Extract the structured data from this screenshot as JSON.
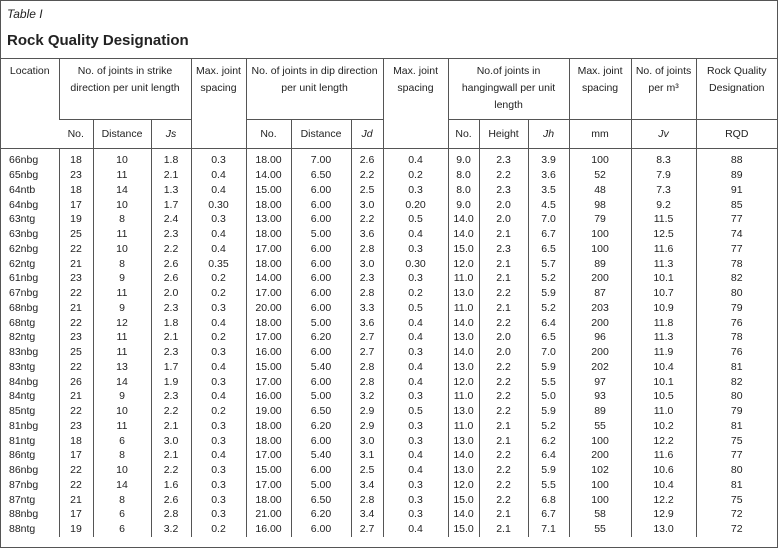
{
  "caption": {
    "label": "Table I",
    "title": "Rock Quality Designation"
  },
  "table": {
    "header": [
      {
        "label": "Location"
      },
      {
        "label": "No. of joints in strike direction per unit length",
        "sub": [
          "No.",
          "Distance",
          "Js"
        ],
        "italic_last": true
      },
      {
        "label": "Max. joint spacing"
      },
      {
        "label": "No. of joints in dip direction per unit length",
        "sub": [
          "No.",
          "Distance",
          "Jd"
        ],
        "italic_last": true
      },
      {
        "label": "Max. joint spacing"
      },
      {
        "label": "No.of joints in hangingwall per unit length",
        "sub": [
          "No.",
          "Height",
          "Jh"
        ],
        "italic_last": true
      },
      {
        "label": "Max. joint spacing",
        "sub": [
          "mm"
        ]
      },
      {
        "label": "No. of joints per m³",
        "sub": [
          "Jv"
        ],
        "italic_last": true
      },
      {
        "label": "Rock Quality Designation",
        "sub": [
          "RQD"
        ]
      }
    ],
    "rows": [
      [
        "66nbg",
        "18",
        "10",
        "1.8",
        "0.3",
        "18.00",
        "7.00",
        "2.6",
        "0.4",
        "9.0",
        "2.3",
        "3.9",
        "100",
        "8.3",
        "88"
      ],
      [
        "65nbg",
        "23",
        "11",
        "2.1",
        "0.4",
        "14.00",
        "6.50",
        "2.2",
        "0.2",
        "8.0",
        "2.2",
        "3.6",
        "52",
        "7.9",
        "89"
      ],
      [
        "64ntb",
        "18",
        "14",
        "1.3",
        "0.4",
        "15.00",
        "6.00",
        "2.5",
        "0.3",
        "8.0",
        "2.3",
        "3.5",
        "48",
        "7.3",
        "91"
      ],
      [
        "64nbg",
        "17",
        "10",
        "1.7",
        "0.30",
        "18.00",
        "6.00",
        "3.0",
        "0.20",
        "9.0",
        "2.0",
        "4.5",
        "98",
        "9.2",
        "85"
      ],
      [
        "63ntg",
        "19",
        "8",
        "2.4",
        "0.3",
        "13.00",
        "6.00",
        "2.2",
        "0.5",
        "14.0",
        "2.0",
        "7.0",
        "79",
        "11.5",
        "77"
      ],
      [
        "63nbg",
        "25",
        "11",
        "2.3",
        "0.4",
        "18.00",
        "5.00",
        "3.6",
        "0.4",
        "14.0",
        "2.1",
        "6.7",
        "100",
        "12.5",
        "74"
      ],
      [
        "62nbg",
        "22",
        "10",
        "2.2",
        "0.4",
        "17.00",
        "6.00",
        "2.8",
        "0.3",
        "15.0",
        "2.3",
        "6.5",
        "100",
        "11.6",
        "77"
      ],
      [
        "62ntg",
        "21",
        "8",
        "2.6",
        "0.35",
        "18.00",
        "6.00",
        "3.0",
        "0.30",
        "12.0",
        "2.1",
        "5.7",
        "89",
        "11.3",
        "78"
      ],
      [
        "61nbg",
        "23",
        "9",
        "2.6",
        "0.2",
        "14.00",
        "6.00",
        "2.3",
        "0.3",
        "11.0",
        "2.1",
        "5.2",
        "200",
        "10.1",
        "82"
      ],
      [
        "67nbg",
        "22",
        "11",
        "2.0",
        "0.2",
        "17.00",
        "6.00",
        "2.8",
        "0.2",
        "13.0",
        "2.2",
        "5.9",
        "87",
        "10.7",
        "80"
      ],
      [
        "68nbg",
        "21",
        "9",
        "2.3",
        "0.3",
        "20.00",
        "6.00",
        "3.3",
        "0.5",
        "11.0",
        "2.1",
        "5.2",
        "203",
        "10.9",
        "79"
      ],
      [
        "68ntg",
        "22",
        "12",
        "1.8",
        "0.4",
        "18.00",
        "5.00",
        "3.6",
        "0.4",
        "14.0",
        "2.2",
        "6.4",
        "200",
        "11.8",
        "76"
      ],
      [
        "82ntg",
        "23",
        "11",
        "2.1",
        "0.2",
        "17.00",
        "6.20",
        "2.7",
        "0.4",
        "13.0",
        "2.0",
        "6.5",
        "96",
        "11.3",
        "78"
      ],
      [
        "83nbg",
        "25",
        "11",
        "2.3",
        "0.3",
        "16.00",
        "6.00",
        "2.7",
        "0.3",
        "14.0",
        "2.0",
        "7.0",
        "200",
        "11.9",
        "76"
      ],
      [
        "83ntg",
        "22",
        "13",
        "1.7",
        "0.4",
        "15.00",
        "5.40",
        "2.8",
        "0.4",
        "13.0",
        "2.2",
        "5.9",
        "202",
        "10.4",
        "81"
      ],
      [
        "84nbg",
        "26",
        "14",
        "1.9",
        "0.3",
        "17.00",
        "6.00",
        "2.8",
        "0.4",
        "12.0",
        "2.2",
        "5.5",
        "97",
        "10.1",
        "82"
      ],
      [
        "84ntg",
        "21",
        "9",
        "2.3",
        "0.4",
        "16.00",
        "5.00",
        "3.2",
        "0.3",
        "11.0",
        "2.2",
        "5.0",
        "93",
        "10.5",
        "80"
      ],
      [
        "85ntg",
        "22",
        "10",
        "2.2",
        "0.2",
        "19.00",
        "6.50",
        "2.9",
        "0.5",
        "13.0",
        "2.2",
        "5.9",
        "89",
        "11.0",
        "79"
      ],
      [
        "81nbg",
        "23",
        "11",
        "2.1",
        "0.3",
        "18.00",
        "6.20",
        "2.9",
        "0.3",
        "11.0",
        "2.1",
        "5.2",
        "55",
        "10.2",
        "81"
      ],
      [
        "81ntg",
        "18",
        "6",
        "3.0",
        "0.3",
        "18.00",
        "6.00",
        "3.0",
        "0.3",
        "13.0",
        "2.1",
        "6.2",
        "100",
        "12.2",
        "75"
      ],
      [
        "86ntg",
        "17",
        "8",
        "2.1",
        "0.4",
        "17.00",
        "5.40",
        "3.1",
        "0.4",
        "14.0",
        "2.2",
        "6.4",
        "200",
        "11.6",
        "77"
      ],
      [
        "86nbg",
        "22",
        "10",
        "2.2",
        "0.3",
        "15.00",
        "6.00",
        "2.5",
        "0.4",
        "13.0",
        "2.2",
        "5.9",
        "102",
        "10.6",
        "80"
      ],
      [
        "87nbg",
        "22",
        "14",
        "1.6",
        "0.3",
        "17.00",
        "5.00",
        "3.4",
        "0.3",
        "12.0",
        "2.2",
        "5.5",
        "100",
        "10.4",
        "81"
      ],
      [
        "87ntg",
        "21",
        "8",
        "2.6",
        "0.3",
        "18.00",
        "6.50",
        "2.8",
        "0.3",
        "15.0",
        "2.2",
        "6.8",
        "100",
        "12.2",
        "75"
      ],
      [
        "88nbg",
        "17",
        "6",
        "2.8",
        "0.3",
        "21.00",
        "6.20",
        "3.4",
        "0.3",
        "14.0",
        "2.1",
        "6.7",
        "58",
        "12.9",
        "72"
      ],
      [
        "88ntg",
        "19",
        "6",
        "3.2",
        "0.2",
        "16.00",
        "6.00",
        "2.7",
        "0.4",
        "15.0",
        "2.1",
        "7.1",
        "55",
        "13.0",
        "72"
      ]
    ]
  }
}
